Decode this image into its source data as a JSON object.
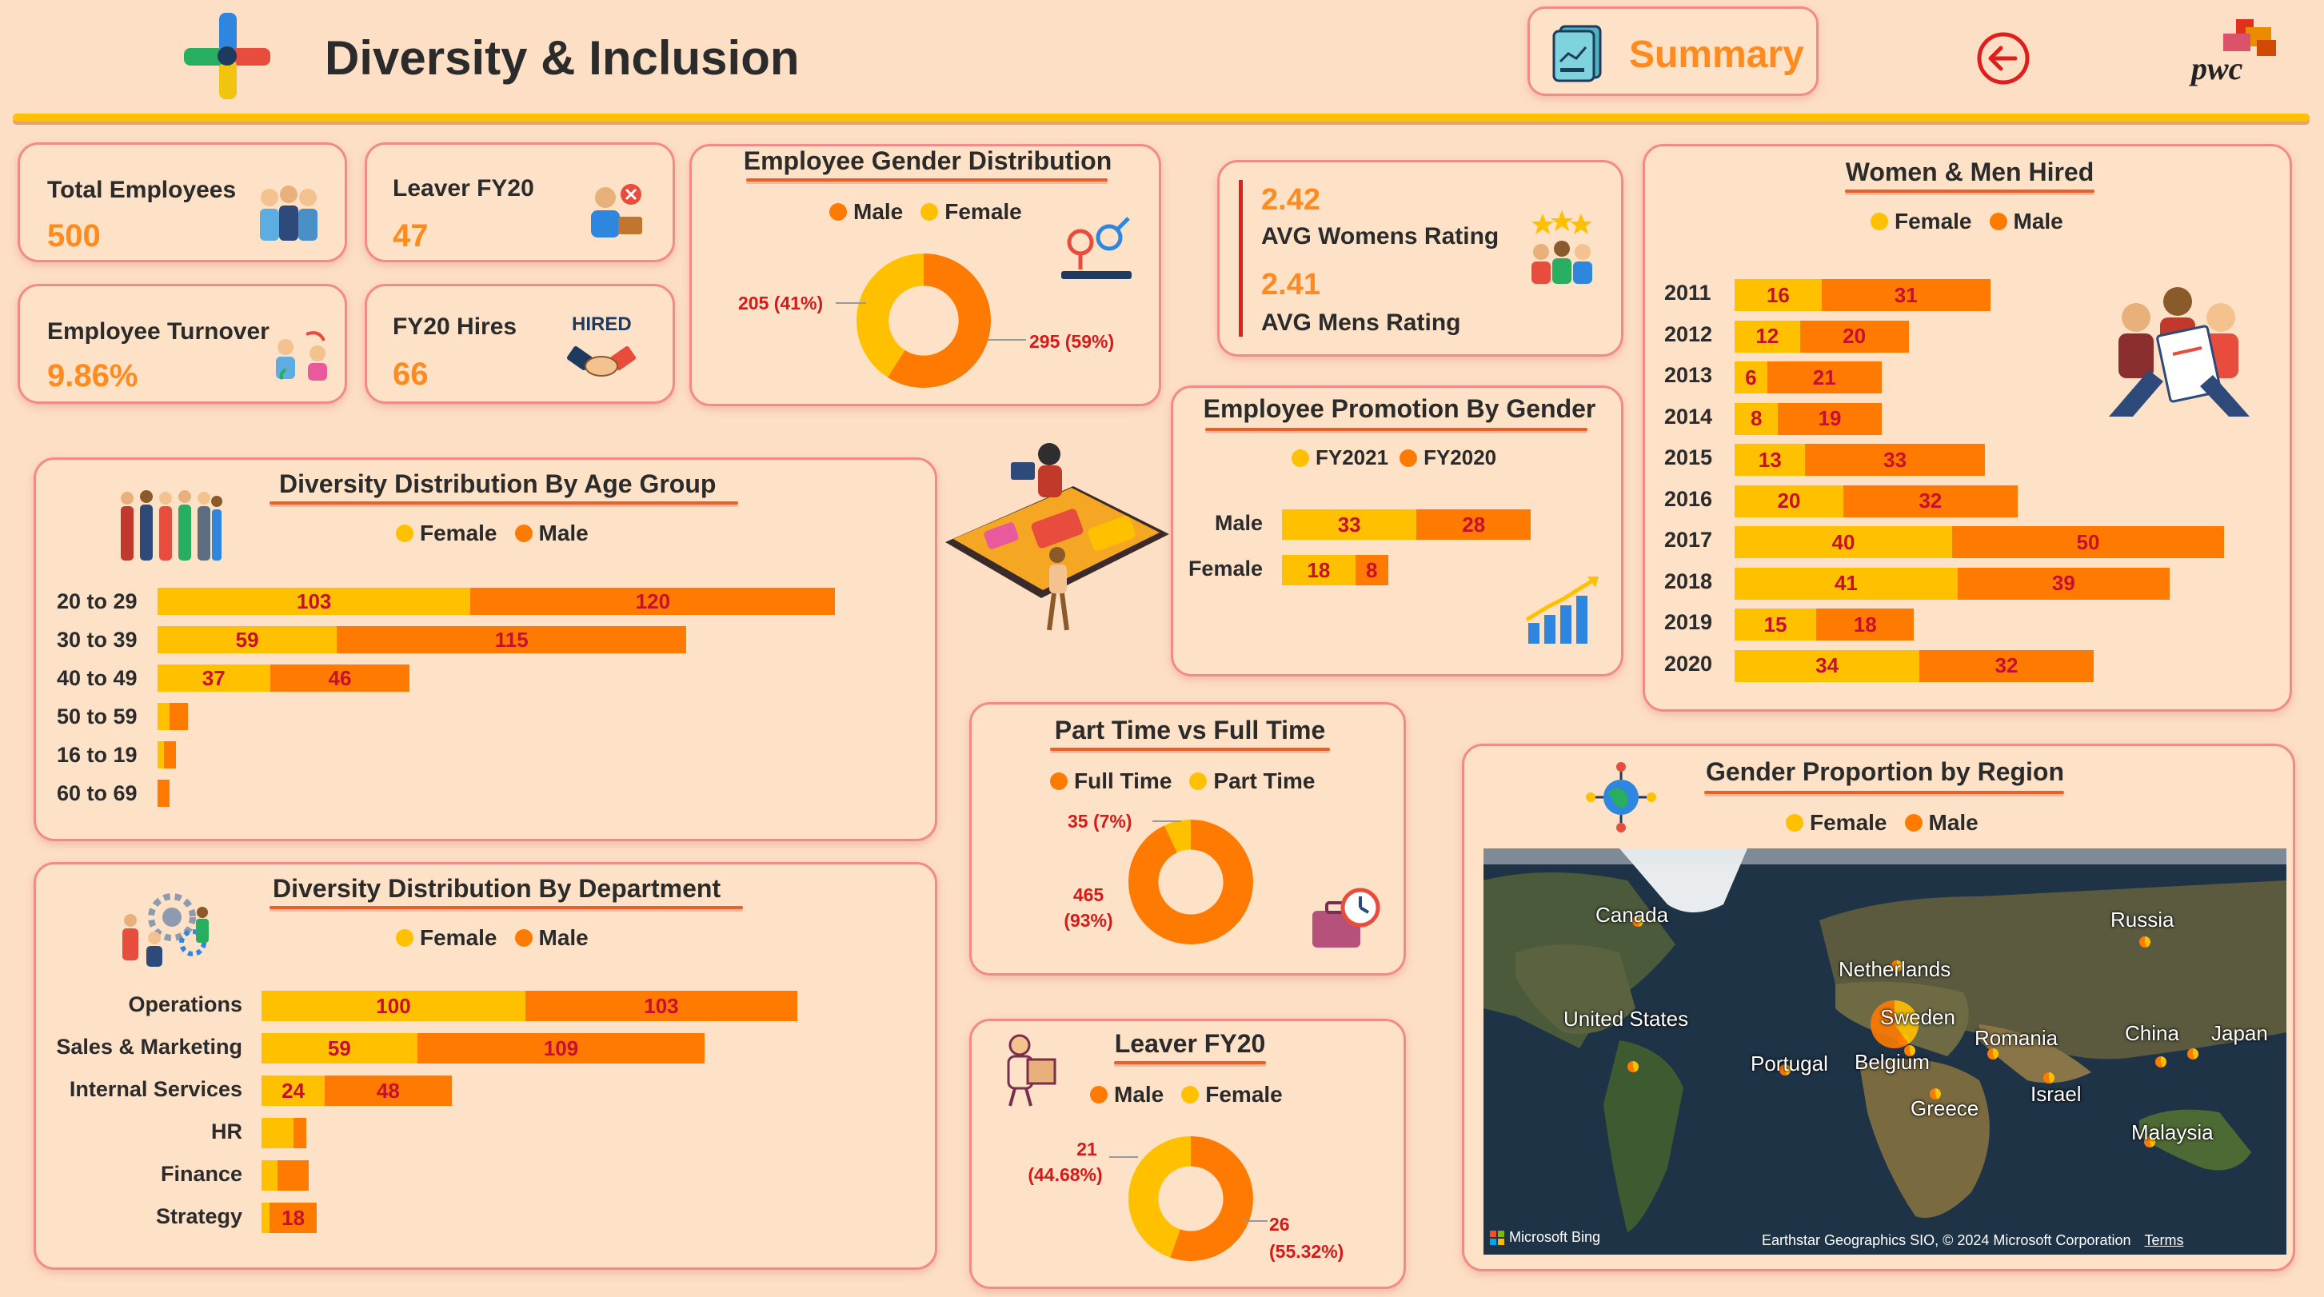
{
  "header": {
    "title": "Diversity & Inclusion",
    "summary_label": "Summary",
    "logo_text": "pwc"
  },
  "colors": {
    "female": "#FFC000",
    "male": "#FF7A00",
    "accent": "#E8602A",
    "label_red": "#D51A1A",
    "value_orange": "#FF8A1E",
    "background": "#FCDFC4"
  },
  "kpis": {
    "total_employees": {
      "label": "Total Employees",
      "value": "500"
    },
    "leaver_fy20": {
      "label": "Leaver FY20",
      "value": "47"
    },
    "employee_turnover": {
      "label": "Employee Turnover",
      "value": "9.86%"
    },
    "fy20_hires": {
      "label": "FY20 Hires",
      "value": "66",
      "badge": "HIRED"
    }
  },
  "ratings": {
    "women_value": "2.42",
    "women_label": "AVG Womens Rating",
    "men_value": "2.41",
    "men_label": "AVG Mens Rating"
  },
  "gender_distribution": {
    "title": "Employee Gender Distribution",
    "legend": [
      "Male",
      "Female"
    ],
    "female_label": "205 (41%)",
    "male_label": "295 (59%)",
    "female_value": 205,
    "male_value": 295
  },
  "promotion": {
    "title": "Employee Promotion By Gender",
    "legend": [
      "FY2021",
      "FY2020"
    ],
    "rows": [
      {
        "label": "Male",
        "fy2021": 33,
        "fy2020": 28,
        "fy2021_label": "33",
        "fy2020_label": "28"
      },
      {
        "label": "Female",
        "fy2021": 18,
        "fy2020": 8,
        "fy2021_label": "18",
        "fy2020_label": "8"
      }
    ]
  },
  "hired": {
    "title": "Women & Men Hired",
    "legend": [
      "Female",
      "Male"
    ],
    "rows": [
      {
        "year": "2011",
        "female": 16,
        "male": 31,
        "female_label": "16",
        "male_label": "31"
      },
      {
        "year": "2012",
        "female": 12,
        "male": 20,
        "female_label": "12",
        "male_label": "20"
      },
      {
        "year": "2013",
        "female": 6,
        "male": 21,
        "female_label": "6",
        "male_label": "21"
      },
      {
        "year": "2014",
        "female": 8,
        "male": 19,
        "female_label": "8",
        "male_label": "19"
      },
      {
        "year": "2015",
        "female": 13,
        "male": 33,
        "female_label": "13",
        "male_label": "33"
      },
      {
        "year": "2016",
        "female": 20,
        "male": 32,
        "female_label": "20",
        "male_label": "32"
      },
      {
        "year": "2017",
        "female": 40,
        "male": 50,
        "female_label": "40",
        "male_label": "50"
      },
      {
        "year": "2018",
        "female": 41,
        "male": 39,
        "female_label": "41",
        "male_label": "39"
      },
      {
        "year": "2019",
        "female": 15,
        "male": 18,
        "female_label": "15",
        "male_label": "18"
      },
      {
        "year": "2020",
        "female": 34,
        "male": 32,
        "female_label": "34",
        "male_label": "32"
      }
    ]
  },
  "age_group": {
    "title": "Diversity Distribution By Age Group",
    "legend": [
      "Female",
      "Male"
    ],
    "rows": [
      {
        "label": "20 to 29",
        "female": 103,
        "male": 120,
        "female_label": "103",
        "male_label": "120"
      },
      {
        "label": "30 to 39",
        "female": 59,
        "male": 115,
        "female_label": "59",
        "male_label": "115"
      },
      {
        "label": "40 to 49",
        "female": 37,
        "male": 46,
        "female_label": "37",
        "male_label": "46"
      },
      {
        "label": "50 to 59",
        "female": 4,
        "male": 6,
        "female_label": "",
        "male_label": ""
      },
      {
        "label": "16 to 19",
        "female": 2,
        "male": 4,
        "female_label": "",
        "male_label": ""
      },
      {
        "label": "60 to 69",
        "female": 0,
        "male": 4,
        "female_label": "",
        "male_label": ""
      }
    ]
  },
  "department": {
    "title": "Diversity Distribution By Department",
    "legend": [
      "Female",
      "Male"
    ],
    "rows": [
      {
        "label": "Operations",
        "female": 100,
        "male": 103,
        "female_label": "100",
        "male_label": "103"
      },
      {
        "label": "Sales & Marketing",
        "female": 59,
        "male": 109,
        "female_label": "59",
        "male_label": "109"
      },
      {
        "label": "Internal Services",
        "female": 24,
        "male": 48,
        "female_label": "24",
        "male_label": "48"
      },
      {
        "label": "HR",
        "female": 12,
        "male": 5,
        "female_label": "",
        "male_label": ""
      },
      {
        "label": "Finance",
        "female": 6,
        "male": 12,
        "female_label": "",
        "male_label": ""
      },
      {
        "label": "Strategy",
        "female": 3,
        "male": 18,
        "female_label": "",
        "male_label": "18"
      }
    ]
  },
  "part_full": {
    "title": "Part Time vs Full Time",
    "legend": [
      "Full Time",
      "Part Time"
    ],
    "part_label": "35 (7%)",
    "full_label_1": "465",
    "full_label_2": "(93%)",
    "part_value": 35,
    "full_value": 465
  },
  "leaver": {
    "title": "Leaver FY20",
    "legend": [
      "Male",
      "Female"
    ],
    "female_label_1": "21",
    "female_label_2": "(44.68%)",
    "male_label_1": "26",
    "male_label_2": "(55.32%)",
    "female_value": 21,
    "male_value": 26
  },
  "region": {
    "title": "Gender Proportion by Region",
    "legend": [
      "Female",
      "Male"
    ],
    "countries": [
      "Canada",
      "Russia",
      "Netherlands",
      "United States",
      "Sweden",
      "Romania",
      "China",
      "Japan",
      "Portugal",
      "Belgium",
      "Israel",
      "Greece",
      "Malaysia"
    ],
    "bing": "Microsoft Bing",
    "attribution": "Earthstar Geographics SIO, © 2024 Microsoft Corporation",
    "terms": "Terms"
  }
}
